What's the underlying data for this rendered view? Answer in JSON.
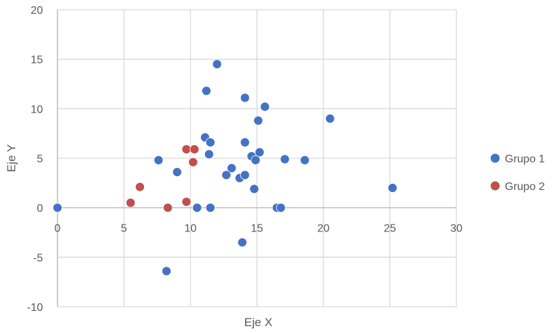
{
  "chart_data": {
    "type": "scatter",
    "title": "",
    "xlabel": "Eje X",
    "ylabel": "Eje Y",
    "xlim": [
      0,
      30
    ],
    "ylim": [
      -10,
      20
    ],
    "xticks": [
      "0",
      "5",
      "10",
      "15",
      "20",
      "25",
      "30"
    ],
    "yticks": [
      "-10",
      "-5",
      "0",
      "5",
      "10",
      "15",
      "20"
    ],
    "grid": true,
    "legend": "right",
    "series": [
      {
        "name": "Grupo 1",
        "color": "#4472C4",
        "points": [
          [
            0,
            0
          ],
          [
            12,
            14.5
          ],
          [
            11.2,
            11.8
          ],
          [
            14.1,
            11.1
          ],
          [
            15.6,
            10.2
          ],
          [
            15.1,
            8.8
          ],
          [
            20.5,
            9.0
          ],
          [
            11.1,
            7.1
          ],
          [
            11.5,
            6.6
          ],
          [
            14.1,
            6.6
          ],
          [
            11.4,
            5.4
          ],
          [
            14.6,
            5.2
          ],
          [
            15.2,
            5.6
          ],
          [
            14.9,
            4.8
          ],
          [
            17.1,
            4.9
          ],
          [
            18.6,
            4.8
          ],
          [
            7.6,
            4.8
          ],
          [
            9.0,
            3.6
          ],
          [
            13.1,
            4.0
          ],
          [
            12.7,
            3.3
          ],
          [
            13.7,
            3.0
          ],
          [
            14.1,
            3.3
          ],
          [
            14.8,
            1.9
          ],
          [
            10.5,
            0
          ],
          [
            11.5,
            0
          ],
          [
            16.5,
            0
          ],
          [
            16.8,
            0
          ],
          [
            25.2,
            2.0
          ],
          [
            13.9,
            -3.5
          ],
          [
            8.2,
            -6.4
          ]
        ]
      },
      {
        "name": "Grupo 2",
        "color": "#C0504D",
        "points": [
          [
            5.5,
            0.5
          ],
          [
            6.2,
            2.1
          ],
          [
            8.3,
            0
          ],
          [
            9.7,
            0.6
          ],
          [
            9.7,
            5.9
          ],
          [
            10.3,
            5.9
          ],
          [
            10.2,
            4.6
          ]
        ]
      }
    ]
  }
}
